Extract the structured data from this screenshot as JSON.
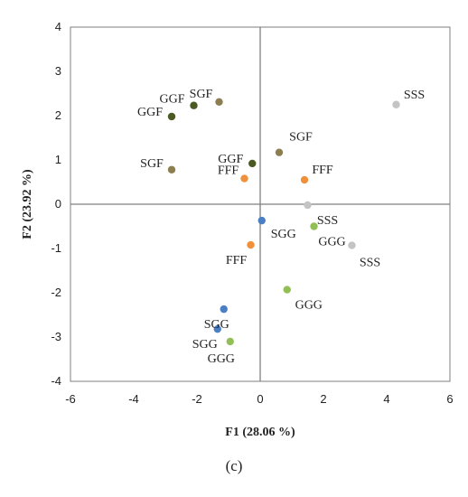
{
  "caption": "(c)",
  "chart_data": {
    "type": "scatter",
    "xlabel": "F1 (28.06 %)",
    "ylabel": "F2 (23.92 %)",
    "xlim": [
      -6,
      6
    ],
    "ylim": [
      -4,
      4
    ],
    "xticks": [
      "-6",
      "-4",
      "-2",
      "0",
      "2",
      "4",
      "6"
    ],
    "yticks": [
      "4",
      "3",
      "2",
      "1",
      "0",
      "-1",
      "-2",
      "-3",
      "-4"
    ],
    "colors": {
      "GGF": "#4a5a22",
      "SGF": "#8c7e50",
      "FFF": "#f0903a",
      "SSS": "#c4c4c4",
      "SGG": "#4a7fc4",
      "GGG": "#92bf55"
    },
    "points": [
      {
        "label": "GGF",
        "group": "GGF",
        "x": -2.8,
        "y": 1.98
      },
      {
        "label": "GGF",
        "group": "GGF",
        "x": -2.1,
        "y": 2.23
      },
      {
        "label": "GGF",
        "group": "GGF",
        "x": -0.25,
        "y": 0.92
      },
      {
        "label": "SGF",
        "group": "SGF",
        "x": -1.3,
        "y": 2.31
      },
      {
        "label": "SGF",
        "group": "SGF",
        "x": -2.8,
        "y": 0.78
      },
      {
        "label": "SGF",
        "group": "SGF",
        "x": 0.6,
        "y": 1.17
      },
      {
        "label": "FFF",
        "group": "FFF",
        "x": -0.5,
        "y": 0.58
      },
      {
        "label": "FFF",
        "group": "FFF",
        "x": 1.4,
        "y": 0.55
      },
      {
        "label": "FFF",
        "group": "FFF",
        "x": -0.3,
        "y": -0.92
      },
      {
        "label": "SSS",
        "group": "SSS",
        "x": 4.3,
        "y": 2.25
      },
      {
        "label": "SSS",
        "group": "SSS",
        "x": 1.5,
        "y": -0.02
      },
      {
        "label": "SSS",
        "group": "SSS",
        "x": 2.9,
        "y": -0.93
      },
      {
        "label": "SGG",
        "group": "SGG",
        "x": 0.05,
        "y": -0.37
      },
      {
        "label": "SGG",
        "group": "SGG",
        "x": -1.15,
        "y": -2.37
      },
      {
        "label": "SGG",
        "group": "SGG",
        "x": -1.35,
        "y": -2.82
      },
      {
        "label": "GGG",
        "group": "GGG",
        "x": 1.7,
        "y": -0.5
      },
      {
        "label": "GGG",
        "group": "GGG",
        "x": 0.85,
        "y": -1.93
      },
      {
        "label": "GGG",
        "group": "GGG",
        "x": -0.95,
        "y": -3.1
      }
    ]
  }
}
